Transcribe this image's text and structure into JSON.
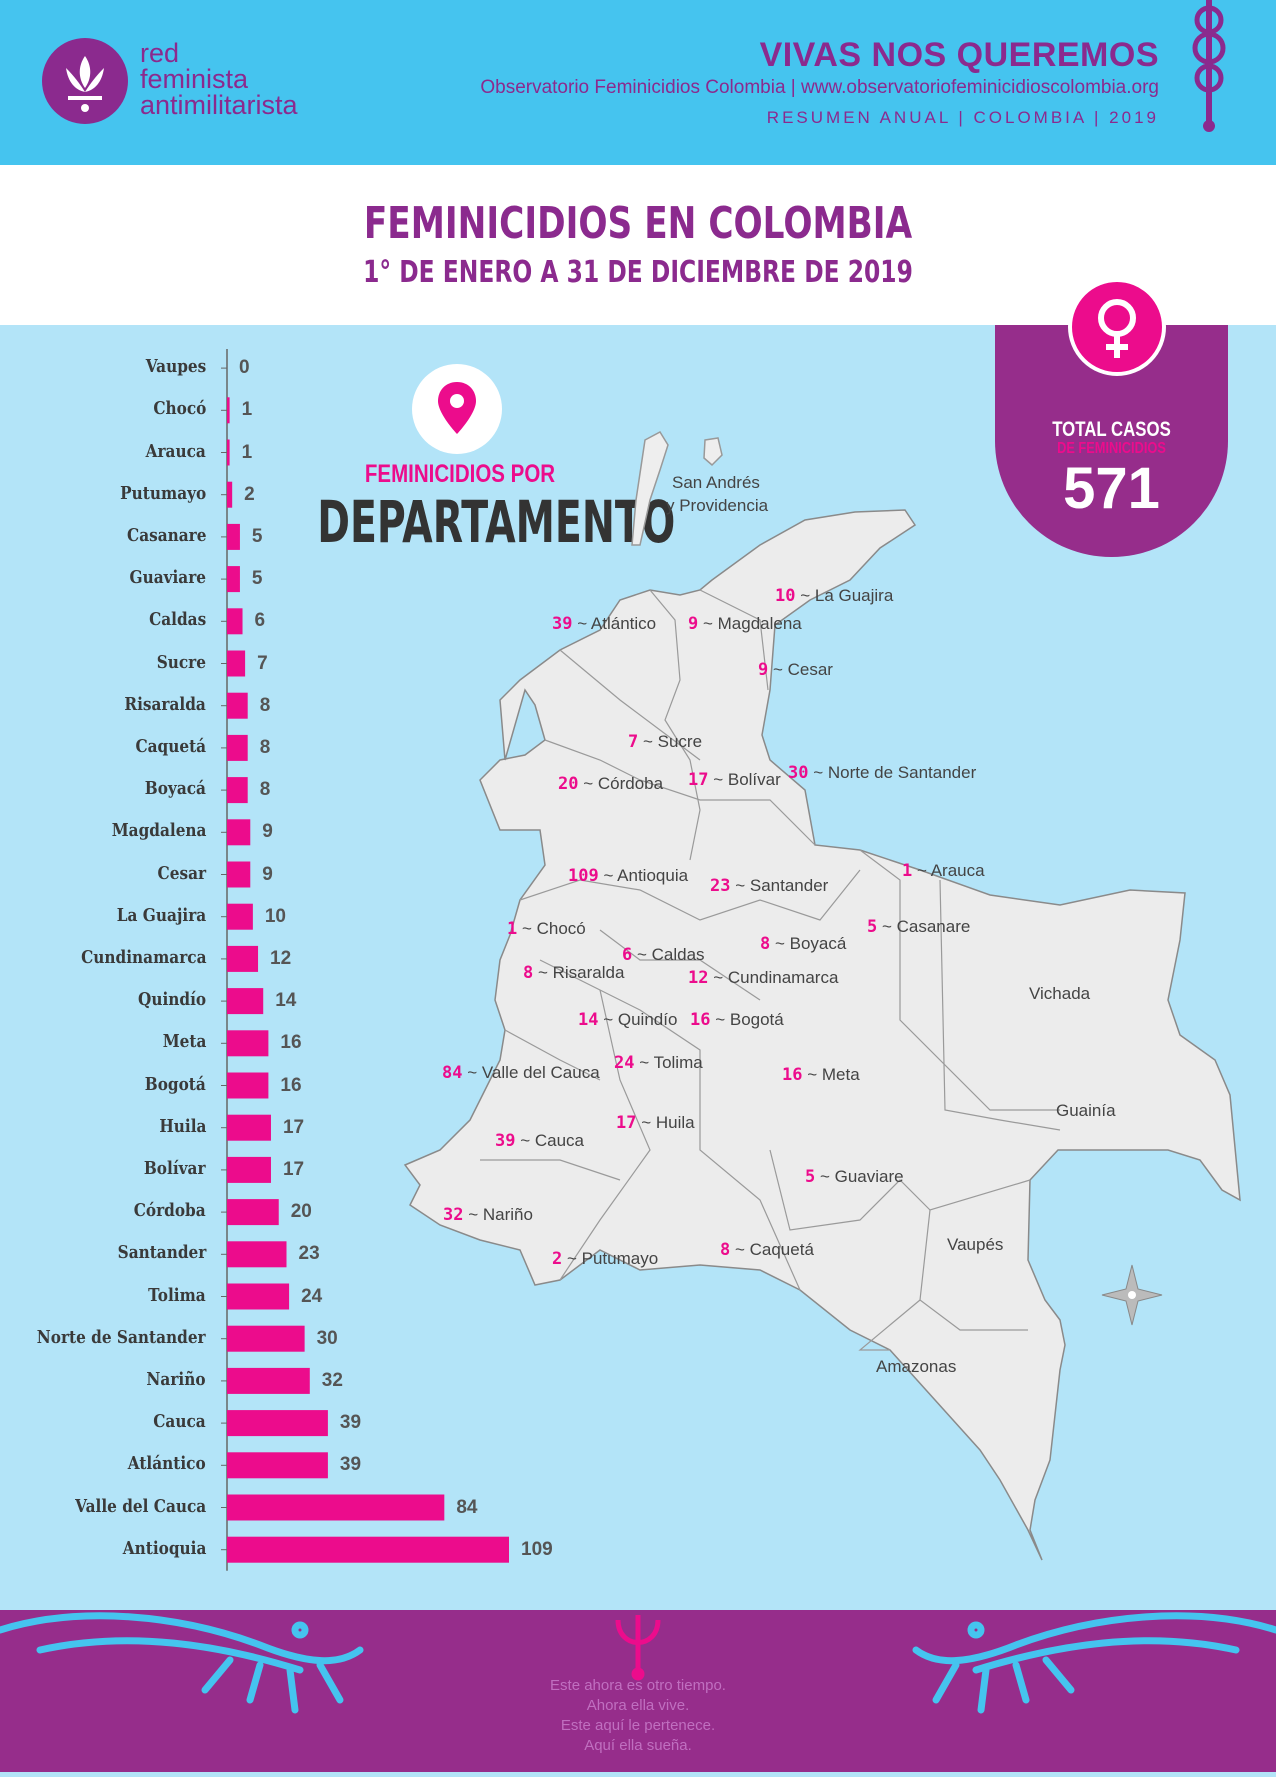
{
  "header": {
    "org_line1": "red",
    "org_line2": "feminista",
    "org_line3": "antimilitarista",
    "campaign": "VIVAS NOS QUEREMOS",
    "observatory": "Observatorio Feminicidios Colombia | www.observatoriofeminicidioscolombia.org",
    "summary": "RESUMEN ANUAL | COLOMBIA | 2019"
  },
  "title": "FEMINICIDIOS EN COLOMBIA",
  "subtitle": "1° DE ENERO A 31 DE DICIEMBRE DE 2019",
  "total": {
    "label": "TOTAL CASOS",
    "label2": "DE FEMINICIDIOS",
    "value": "571"
  },
  "section": {
    "small": "FEMINICIDIOS POR",
    "big": "DEPARTAMENTO"
  },
  "colors": {
    "bar": "#ec0c8c",
    "purple": "#8b2a8e",
    "header_blue": "#45c4ef",
    "background": "#b3e4f8"
  },
  "chart_data": {
    "type": "bar",
    "orientation": "horizontal",
    "categories": [
      "Vaupes",
      "Chocó",
      "Arauca",
      "Putumayo",
      "Casanare",
      "Guaviare",
      "Caldas",
      "Sucre",
      "Risaralda",
      "Caquetá",
      "Boyacá",
      "Magdalena",
      "Cesar",
      "La Guajira",
      "Cundinamarca",
      "Quindío",
      "Meta",
      "Bogotá",
      "Huila",
      "Bolívar",
      "Córdoba",
      "Santander",
      "Tolima",
      "Norte de Santander",
      "Nariño",
      "Cauca",
      "Atlántico",
      "Valle del Cauca",
      "Antioquia"
    ],
    "values": [
      0,
      1,
      1,
      2,
      5,
      5,
      6,
      7,
      8,
      8,
      8,
      9,
      9,
      10,
      12,
      14,
      16,
      16,
      17,
      17,
      20,
      23,
      24,
      30,
      32,
      39,
      39,
      84,
      109
    ],
    "xlim": [
      0,
      109
    ]
  },
  "map": {
    "labels": [
      {
        "value": "10",
        "name": "La Guajira"
      },
      {
        "value": "39",
        "name": "Atlántico"
      },
      {
        "value": "9",
        "name": "Magdalena"
      },
      {
        "value": "9",
        "name": "Cesar"
      },
      {
        "value": "7",
        "name": "Sucre"
      },
      {
        "value": "20",
        "name": "Córdoba"
      },
      {
        "value": "17",
        "name": "Bolívar"
      },
      {
        "value": "30",
        "name": "Norte de Santander"
      },
      {
        "value": "109",
        "name": "Antioquia"
      },
      {
        "value": "23",
        "name": "Santander"
      },
      {
        "value": "1",
        "name": "Arauca"
      },
      {
        "value": "1",
        "name": "Chocó"
      },
      {
        "value": "8",
        "name": "Boyacá"
      },
      {
        "value": "5",
        "name": "Casanare"
      },
      {
        "value": "6",
        "name": "Caldas"
      },
      {
        "value": "8",
        "name": "Risaralda"
      },
      {
        "value": "12",
        "name": "Cundinamarca"
      },
      {
        "value": "14",
        "name": "Quindío"
      },
      {
        "value": "16",
        "name": "Bogotá"
      },
      {
        "value": "84",
        "name": "Valle del Cauca"
      },
      {
        "value": "24",
        "name": "Tolima"
      },
      {
        "value": "16",
        "name": "Meta"
      },
      {
        "value": "39",
        "name": "Cauca"
      },
      {
        "value": "17",
        "name": "Huila"
      },
      {
        "value": "5",
        "name": "Guaviare"
      },
      {
        "value": "32",
        "name": "Nariño"
      },
      {
        "value": "2",
        "name": "Putumayo"
      },
      {
        "value": "8",
        "name": "Caquetá"
      }
    ],
    "plain": [
      "San Andrés",
      "y Providencia",
      "Vichada",
      "Guainía",
      "Vaupés",
      "Amazonas"
    ]
  },
  "footer": {
    "poem": [
      "Este ahora es otro tiempo.",
      "Ahora ella vive.",
      "Este aquí le pertenece.",
      "Aquí ella sueña."
    ]
  }
}
